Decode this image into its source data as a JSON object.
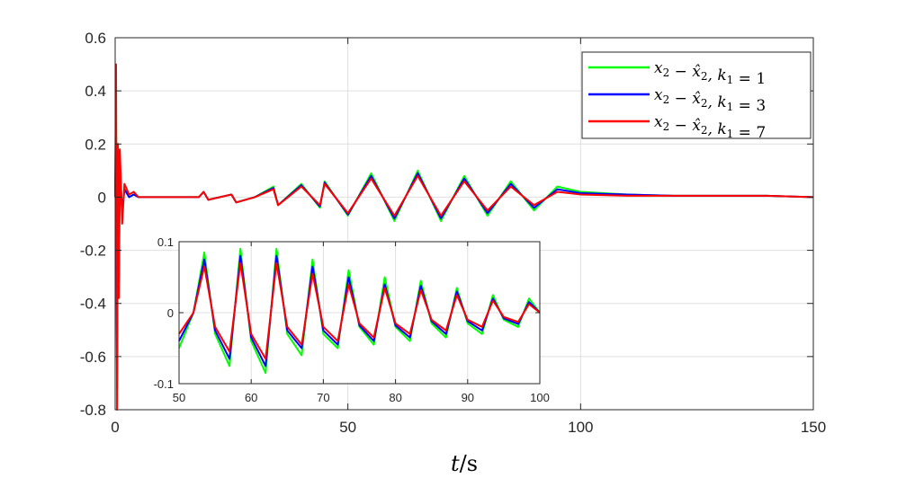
{
  "chart_data": [
    {
      "type": "line",
      "xlabel": "t/s",
      "ylabel": "",
      "xlim": [
        0,
        150
      ],
      "ylim": [
        -0.8,
        0.6
      ],
      "xticks": [
        "0",
        "50",
        "100",
        "150"
      ],
      "yticks": [
        "0.6",
        "0.4",
        "0.2",
        "0",
        "-0.2",
        "-0.4",
        "-0.6",
        "-0.8"
      ],
      "grid": true,
      "legend_position": "top-right",
      "series": [
        {
          "name": "x2 − x̂2, k1 = 1",
          "color": "#00ff00",
          "legend_parts": [
            "x",
            "2",
            " − x̂",
            "2",
            ", k",
            "1",
            " = 1"
          ],
          "x": [
            0,
            0.2,
            0.4,
            0.6,
            0.8,
            1,
            1.5,
            2,
            3,
            4,
            5,
            8,
            13,
            18,
            19,
            20,
            25,
            26,
            30,
            34,
            35,
            40,
            44,
            45,
            50,
            55,
            60,
            65,
            70,
            75,
            80,
            85,
            90,
            95,
            100,
            110,
            120,
            130,
            140,
            150
          ],
          "y": [
            0,
            0.42,
            -0.65,
            0.2,
            -0.3,
            0.1,
            -0.05,
            0.03,
            0,
            0.01,
            0,
            0,
            0,
            0,
            0.02,
            -0.01,
            0.01,
            -0.02,
            0,
            0.04,
            -0.03,
            0.05,
            -0.04,
            0.06,
            -0.07,
            0.09,
            -0.09,
            0.1,
            -0.09,
            0.08,
            -0.07,
            0.06,
            -0.05,
            0.04,
            0.02,
            0.01,
            0.005,
            0.005,
            0.005,
            0
          ]
        },
        {
          "name": "x2 − x̂2, k1 = 3",
          "color": "#0000ff",
          "legend_parts": [
            "x",
            "2",
            " − x̂",
            "2",
            ", k",
            "1",
            " = 3"
          ],
          "x": [
            0,
            0.2,
            0.4,
            0.6,
            0.8,
            1,
            1.5,
            2,
            3,
            4,
            5,
            8,
            13,
            18,
            19,
            20,
            25,
            26,
            30,
            34,
            35,
            40,
            44,
            45,
            50,
            55,
            60,
            65,
            70,
            75,
            80,
            85,
            90,
            95,
            100,
            110,
            120,
            130,
            140,
            150
          ],
          "y": [
            0,
            0.22,
            -0.72,
            0.18,
            -0.32,
            0.12,
            -0.06,
            0.03,
            0,
            0.01,
            0,
            0,
            0,
            0,
            0.02,
            -0.01,
            0.01,
            -0.02,
            0,
            0.035,
            -0.03,
            0.045,
            -0.035,
            0.055,
            -0.065,
            0.08,
            -0.08,
            0.09,
            -0.08,
            0.07,
            -0.06,
            0.05,
            -0.04,
            0.03,
            0.015,
            0.01,
            0.005,
            0.005,
            0.005,
            0
          ]
        },
        {
          "name": "x2 − x̂2, k1 = 7",
          "color": "#ff0000",
          "legend_parts": [
            "x",
            "2",
            " − x̂",
            "2",
            ", k",
            "1",
            " = 7"
          ],
          "x": [
            0,
            0.2,
            0.4,
            0.6,
            0.8,
            1,
            1.5,
            2,
            3,
            4,
            5,
            8,
            13,
            18,
            19,
            20,
            25,
            26,
            30,
            34,
            35,
            40,
            44,
            45,
            50,
            55,
            60,
            65,
            70,
            75,
            80,
            85,
            90,
            95,
            100,
            110,
            120,
            130,
            140,
            150
          ],
          "y": [
            0,
            0.5,
            -0.8,
            0.2,
            -0.38,
            0.18,
            -0.1,
            0.05,
            0.01,
            0.02,
            0,
            0,
            0,
            0,
            0.02,
            -0.01,
            0.01,
            -0.02,
            0,
            0.03,
            -0.03,
            0.04,
            -0.03,
            0.05,
            -0.06,
            0.07,
            -0.07,
            0.08,
            -0.07,
            0.06,
            -0.05,
            0.04,
            -0.03,
            0.02,
            0.01,
            0.005,
            0.005,
            0.005,
            0.005,
            0
          ]
        }
      ]
    },
    {
      "type": "line",
      "xlim": [
        50,
        100
      ],
      "ylim": [
        -0.1,
        0.1
      ],
      "xticks": [
        "50",
        "60",
        "70",
        "80",
        "90",
        "100"
      ],
      "yticks": [
        "0.1",
        "0",
        "-0.1"
      ],
      "grid": true,
      "series": [
        {
          "name": "k1 = 1",
          "color": "#00ff00",
          "x": [
            50,
            52,
            53.5,
            55,
            57,
            58.5,
            60,
            62,
            63.5,
            65,
            67,
            68.5,
            70,
            72,
            73.5,
            75,
            77,
            78.5,
            80,
            82,
            83.5,
            85,
            87,
            88.5,
            90,
            92,
            93.5,
            95,
            97,
            98.5,
            100
          ],
          "y": [
            -0.05,
            0,
            0.085,
            -0.03,
            -0.075,
            0.09,
            -0.04,
            -0.085,
            0.09,
            -0.03,
            -0.06,
            0.075,
            -0.03,
            -0.05,
            0.06,
            -0.02,
            -0.045,
            0.05,
            -0.02,
            -0.04,
            0.045,
            -0.015,
            -0.035,
            0.035,
            -0.015,
            -0.03,
            0.025,
            -0.01,
            -0.02,
            0.02,
            0
          ]
        },
        {
          "name": "k1 = 3",
          "color": "#0000ff",
          "x": [
            50,
            52,
            53.5,
            55,
            57,
            58.5,
            60,
            62,
            63.5,
            65,
            67,
            68.5,
            70,
            72,
            73.5,
            75,
            77,
            78.5,
            80,
            82,
            83.5,
            85,
            87,
            88.5,
            90,
            92,
            93.5,
            95,
            97,
            98.5,
            100
          ],
          "y": [
            -0.04,
            0,
            0.075,
            -0.025,
            -0.065,
            0.08,
            -0.035,
            -0.075,
            0.08,
            -0.025,
            -0.05,
            0.065,
            -0.025,
            -0.045,
            0.05,
            -0.018,
            -0.04,
            0.04,
            -0.018,
            -0.035,
            0.038,
            -0.012,
            -0.03,
            0.03,
            -0.012,
            -0.025,
            0.02,
            -0.008,
            -0.016,
            0.015,
            0
          ]
        },
        {
          "name": "k1 = 7",
          "color": "#ff0000",
          "x": [
            50,
            52,
            53.5,
            55,
            57,
            58.5,
            60,
            62,
            63.5,
            65,
            67,
            68.5,
            70,
            72,
            73.5,
            75,
            77,
            78.5,
            80,
            82,
            83.5,
            85,
            87,
            88.5,
            90,
            92,
            93.5,
            95,
            97,
            98.5,
            100
          ],
          "y": [
            -0.03,
            0,
            0.065,
            -0.02,
            -0.055,
            0.07,
            -0.03,
            -0.065,
            0.07,
            -0.02,
            -0.045,
            0.055,
            -0.02,
            -0.04,
            0.04,
            -0.015,
            -0.035,
            0.035,
            -0.015,
            -0.03,
            0.032,
            -0.01,
            -0.025,
            0.025,
            -0.01,
            -0.02,
            0.017,
            -0.006,
            -0.013,
            0.012,
            0
          ]
        }
      ]
    }
  ]
}
